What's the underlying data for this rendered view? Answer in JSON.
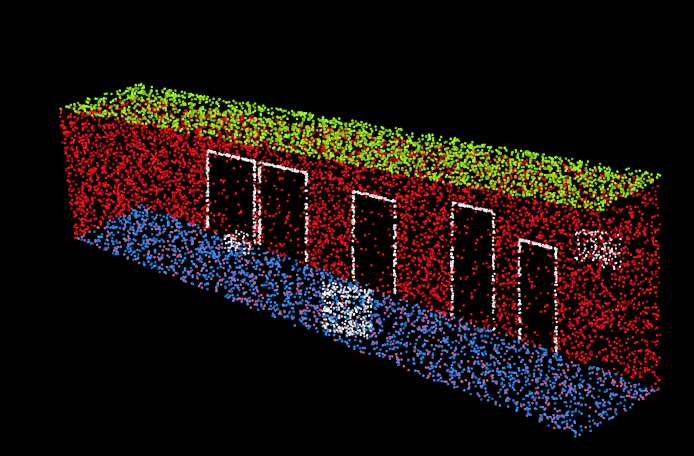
{
  "scene": {
    "background_color": "#000000",
    "classes": [
      {
        "name": "wall",
        "color": "#e8101a"
      },
      {
        "name": "ceiling",
        "color": "#8fe01a"
      },
      {
        "name": "floor",
        "color": "#2f7fe6"
      },
      {
        "name": "door-window",
        "color": "#e8e8e8"
      }
    ]
  }
}
